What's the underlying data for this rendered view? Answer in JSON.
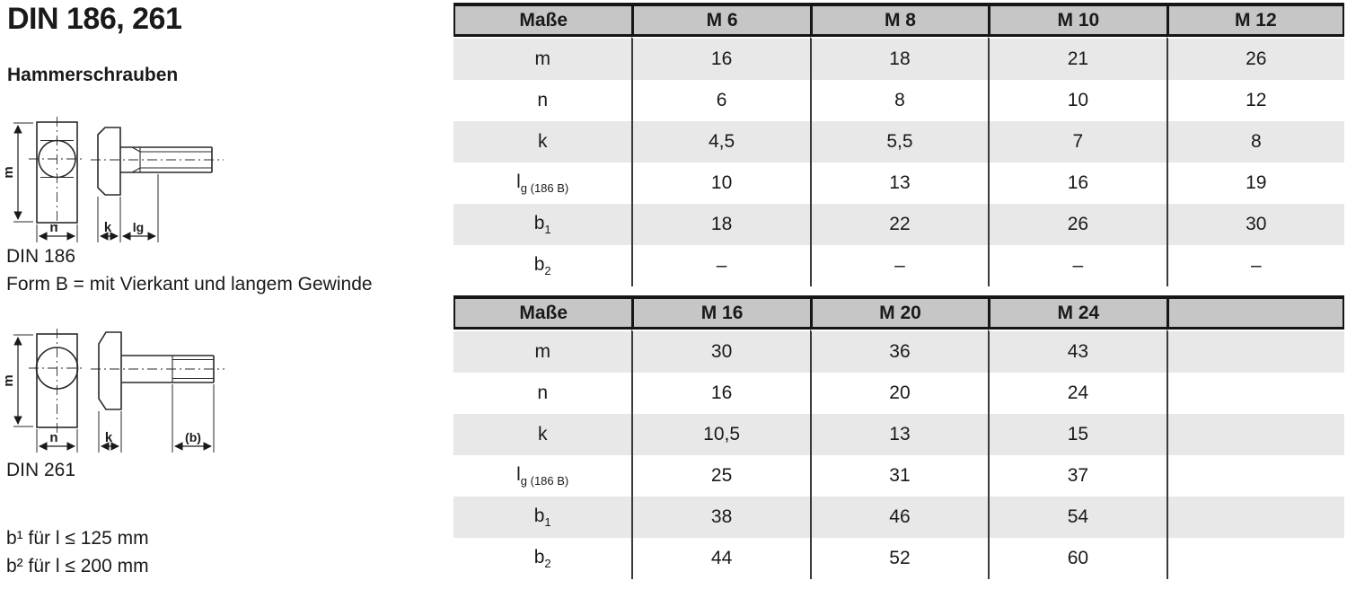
{
  "page": {
    "title": "DIN 186, 261",
    "subtitle": "Hammerschrauben",
    "drawing1_caption": "DIN 186",
    "form_note": "Form B = mit Vierkant und langem Gewinde",
    "drawing2_caption": "DIN 261",
    "footnote1": "b¹ für l ≤ 125 mm",
    "footnote2": "b² für l ≤ 200 mm"
  },
  "drawing_labels": {
    "m": "m",
    "n": "n",
    "k": "k",
    "lg": "lg",
    "b": "(b)"
  },
  "colors": {
    "header_bg": "#c6c6c6",
    "row_alt_bg": "#e8e8e8",
    "border_dark": "#161616",
    "grid_line": "#3a3a3a",
    "text": "#1a1a1a"
  },
  "table1": {
    "headers": [
      "Maße",
      "M 6",
      "M 8",
      "M 10",
      "M 12"
    ],
    "rows": [
      {
        "label": "m",
        "sub": "",
        "values": [
          "16",
          "18",
          "21",
          "26"
        ]
      },
      {
        "label": "n",
        "sub": "",
        "values": [
          "6",
          "8",
          "10",
          "12"
        ]
      },
      {
        "label": "k",
        "sub": "",
        "values": [
          "4,5",
          "5,5",
          "7",
          "8"
        ]
      },
      {
        "label": "l",
        "sub": "g (186 B)",
        "values": [
          "10",
          "13",
          "16",
          "19"
        ]
      },
      {
        "label": "b",
        "sub": "1",
        "values": [
          "18",
          "22",
          "26",
          "30"
        ]
      },
      {
        "label": "b",
        "sub": "2",
        "values": [
          "–",
          "–",
          "–",
          "–"
        ]
      }
    ]
  },
  "table2": {
    "headers": [
      "Maße",
      "M 16",
      "M 20",
      "M 24",
      ""
    ],
    "rows": [
      {
        "label": "m",
        "sub": "",
        "values": [
          "30",
          "36",
          "43",
          ""
        ]
      },
      {
        "label": "n",
        "sub": "",
        "values": [
          "16",
          "20",
          "24",
          ""
        ]
      },
      {
        "label": "k",
        "sub": "",
        "values": [
          "10,5",
          "13",
          "15",
          ""
        ]
      },
      {
        "label": "l",
        "sub": "g (186 B)",
        "values": [
          "25",
          "31",
          "37",
          ""
        ]
      },
      {
        "label": "b",
        "sub": "1",
        "values": [
          "38",
          "46",
          "54",
          ""
        ]
      },
      {
        "label": "b",
        "sub": "2",
        "values": [
          "44",
          "52",
          "60",
          ""
        ]
      }
    ]
  }
}
